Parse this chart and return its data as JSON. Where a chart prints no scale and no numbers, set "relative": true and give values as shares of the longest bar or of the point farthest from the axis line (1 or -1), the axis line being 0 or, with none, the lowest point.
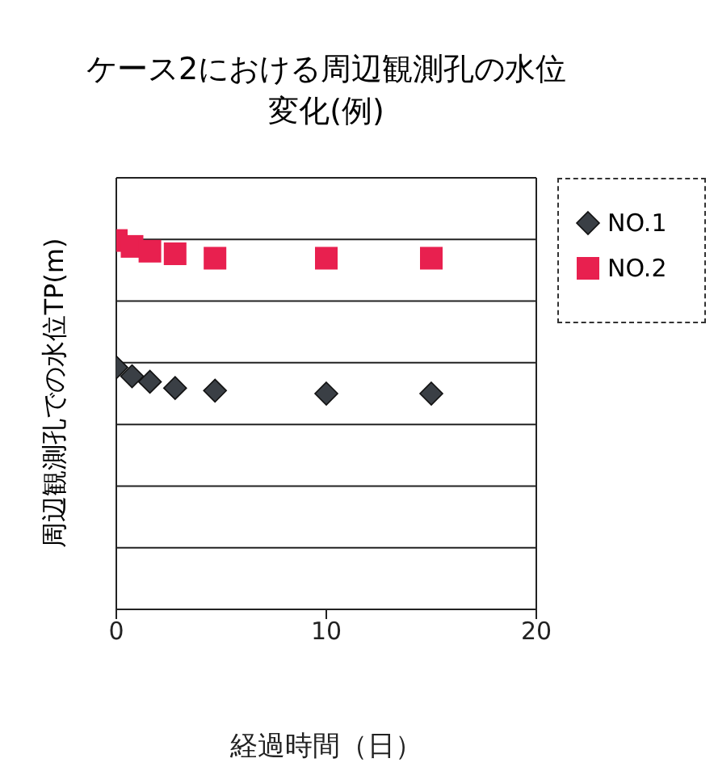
{
  "chart_data": {
    "type": "scatter",
    "title": "ケース2における周辺観測孔の水位変化(例)",
    "xlabel": "経過時間（日）",
    "ylabel": "周辺観測孔での水位TP(m)",
    "relative": true,
    "xlim": [
      0,
      20
    ],
    "xticks": [
      0,
      10,
      20
    ],
    "grid": "y",
    "legend": "top right",
    "series": [
      {
        "name": "NO.1",
        "color": "#3a3f45",
        "marker": "diamond",
        "x": [
          0,
          0.75,
          1.6,
          2.8,
          4.7,
          10,
          15
        ],
        "values": [
          0.656,
          0.632,
          0.617,
          0.6,
          0.593,
          0.585,
          0.585
        ]
      },
      {
        "name": "NO.2",
        "color": "#e8204f",
        "marker": "square",
        "x": [
          0,
          0.75,
          1.6,
          2.8,
          4.7,
          10,
          15
        ],
        "values": [
          1,
          0.984,
          0.971,
          0.964,
          0.952,
          0.952,
          0.952
        ]
      }
    ]
  }
}
